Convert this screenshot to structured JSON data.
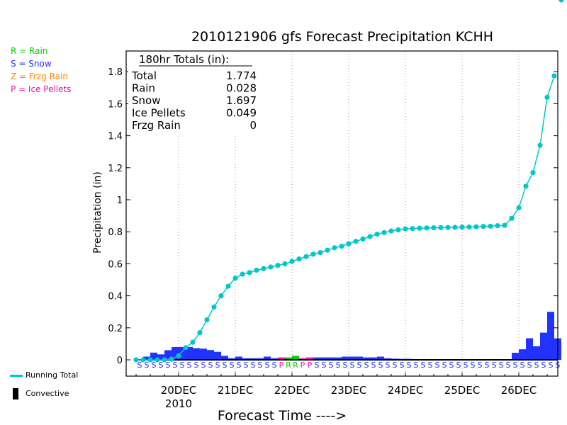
{
  "chart_data": {
    "type": "bar+line",
    "title": "2010121906 gfs Forecast Precipitation KCHH",
    "xlabel": "Forecast Time ---->",
    "ylabel": "Precipitation (in)",
    "ylim": [
      -0.09,
      1.87
    ],
    "yticks": [
      0,
      0.2,
      0.4,
      0.6,
      0.8,
      1,
      1.2,
      1.4,
      1.6,
      1.8
    ],
    "ytick_labels": [
      "0",
      "0.2",
      "0.4",
      "0.6",
      "0.8",
      "1",
      "1.2",
      "1.4",
      "1.6",
      "1.8"
    ],
    "x_start": "2010-12-19 06Z",
    "x_end": "2010-12-26 18Z",
    "date_ticks": [
      {
        "label": "20DEC",
        "sub": "2010",
        "hours": 18
      },
      {
        "label": "21DEC",
        "sub": "",
        "hours": 42
      },
      {
        "label": "22DEC",
        "sub": "",
        "hours": 66
      },
      {
        "label": "23DEC",
        "sub": "",
        "hours": 90
      },
      {
        "label": "24DEC",
        "sub": "",
        "hours": 114
      },
      {
        "label": "25DEC",
        "sub": "",
        "hours": 138
      },
      {
        "label": "26DEC",
        "sub": "",
        "hours": 162
      }
    ],
    "grid": "vertical dotted at date ticks",
    "forecast_hours": [
      0,
      3,
      6,
      9,
      12,
      15,
      18,
      21,
      24,
      27,
      30,
      33,
      36,
      39,
      42,
      45,
      48,
      51,
      54,
      57,
      60,
      63,
      66,
      69,
      72,
      75,
      78,
      81,
      84,
      87,
      90,
      93,
      96,
      99,
      102,
      105,
      108,
      111,
      114,
      117,
      120,
      123,
      126,
      129,
      132,
      135,
      138,
      141,
      144,
      147,
      150,
      153,
      156,
      159,
      162,
      165,
      168,
      171,
      174,
      177,
      180
    ],
    "running_total": [
      0,
      0,
      0,
      0,
      0,
      0.004,
      0.025,
      0.076,
      0.11,
      0.17,
      0.25,
      0.33,
      0.4,
      0.46,
      0.51,
      0.535,
      0.545,
      0.56,
      0.57,
      0.58,
      0.59,
      0.6,
      0.615,
      0.63,
      0.645,
      0.66,
      0.67,
      0.685,
      0.7,
      0.71,
      0.725,
      0.74,
      0.755,
      0.77,
      0.785,
      0.795,
      0.805,
      0.812,
      0.818,
      0.82,
      0.822,
      0.824,
      0.825,
      0.826,
      0.827,
      0.828,
      0.829,
      0.83,
      0.831,
      0.833,
      0.835,
      0.838,
      0.84,
      0.884,
      0.95,
      1.085,
      1.17,
      1.34,
      1.64,
      1.774
    ],
    "interval_precip": [
      0.002,
      0.02,
      0.045,
      0.034,
      0.06,
      0.08,
      0.08,
      0.08,
      0.073,
      0.07,
      0.061,
      0.05,
      0.025,
      0.01,
      0.02,
      0.01,
      0.01,
      0.01,
      0.02,
      0.01,
      0.015,
      0.015,
      0.025,
      0.01,
      0.015,
      0.015,
      0.015,
      0.015,
      0.015,
      0.02,
      0.02,
      0.02,
      0.015,
      0.015,
      0.02,
      0.01,
      0.007,
      0.006,
      0.006,
      0.004,
      0.003,
      0.002,
      0.002,
      0.001,
      0.001,
      0.001,
      0.001,
      0.002,
      0.002,
      0.002,
      0.003,
      0.002,
      0.003,
      0.044,
      0.066,
      0.135,
      0.085,
      0.17,
      0.3,
      0.134
    ],
    "interval_type": [
      "S",
      "S",
      "S",
      "S",
      "S",
      "S",
      "S",
      "S",
      "S",
      "S",
      "S",
      "S",
      "S",
      "S",
      "S",
      "S",
      "S",
      "S",
      "S",
      "S",
      "P",
      "R",
      "R",
      "P",
      "P",
      "S",
      "S",
      "S",
      "S",
      "S",
      "S",
      "S",
      "S",
      "S",
      "S",
      "S",
      "S",
      "S",
      "S",
      "S",
      "S",
      "S",
      "S",
      "S",
      "S",
      "S",
      "S",
      "S",
      "S",
      "S",
      "S",
      "S",
      "S",
      "S",
      "S",
      "S",
      "S",
      "S",
      "S",
      "S"
    ],
    "series_legend": [
      {
        "code": "R",
        "label": "R = Rain",
        "color": "#00cc00"
      },
      {
        "code": "S",
        "label": "S = Snow",
        "color": "#2233ff"
      },
      {
        "code": "Z",
        "label": "Z = Frzg Rain",
        "color": "#ff8800"
      },
      {
        "code": "P",
        "label": "P = Ice Pellets",
        "color": "#ee11aa"
      }
    ],
    "running_total_label": "Running Total",
    "convective_label": "Convective",
    "line_color": "#00c8c8",
    "totals_box": {
      "header": "180hr Totals (in):",
      "rows": [
        {
          "label": "Total",
          "value": "1.774"
        },
        {
          "label": "Rain",
          "value": "0.028"
        },
        {
          "label": "Snow",
          "value": "1.697"
        },
        {
          "label": "Ice Pellets",
          "value": "0.049"
        },
        {
          "label": "Frzg Rain",
          "value": "0"
        }
      ]
    }
  }
}
